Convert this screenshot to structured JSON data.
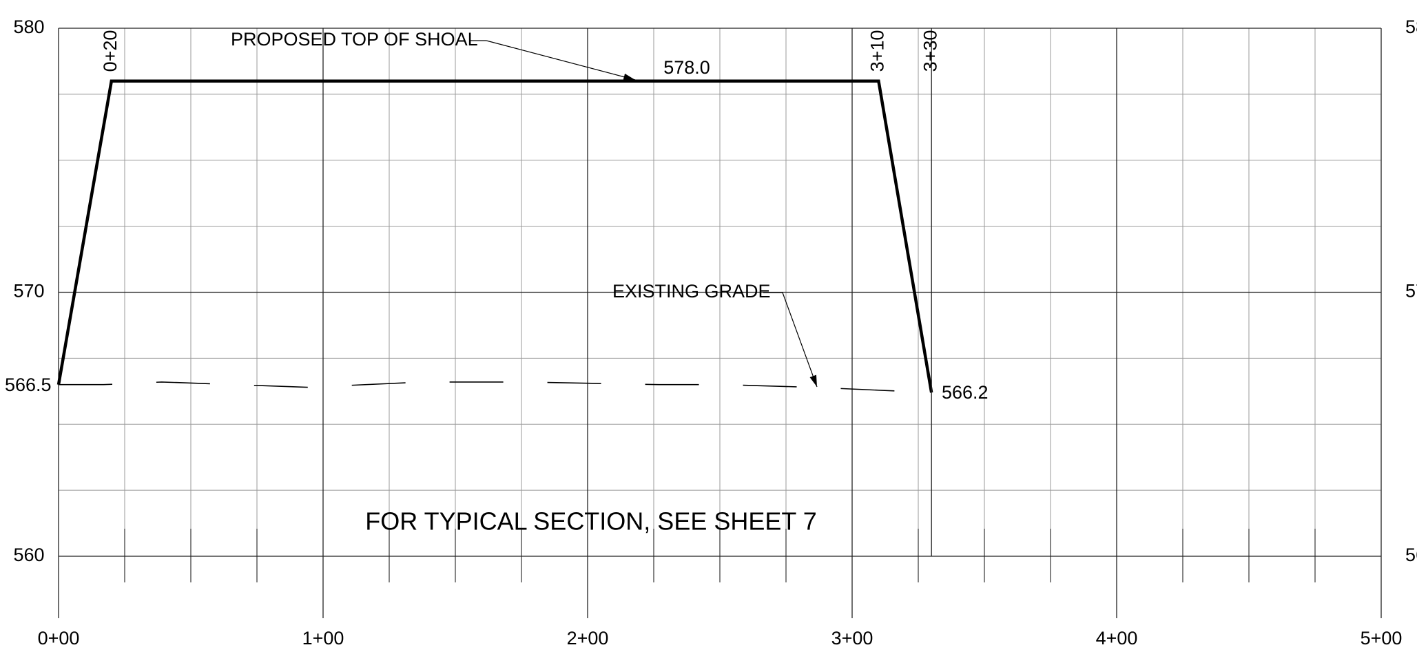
{
  "chart_data": {
    "type": "line",
    "x": [
      0,
      20,
      310,
      330
    ],
    "series": [
      {
        "name": "PROPOSED TOP OF SHOAL",
        "color": "#000000",
        "style": "solid",
        "x": [
          0,
          20,
          310,
          330
        ],
        "values": [
          566.5,
          578,
          578,
          566.2
        ]
      },
      {
        "name": "EXISTING GRADE",
        "color": "#000000",
        "style": "dashed",
        "x": [
          0,
          17,
          39,
          94,
          138,
          176,
          227,
          251,
          285,
          330
        ],
        "values": [
          566.5,
          566.5,
          566.6,
          566.4,
          566.6,
          566.6,
          566.5,
          566.5,
          566.4,
          566.2
        ]
      }
    ],
    "xlim": [
      0,
      500
    ],
    "ylim": [
      560,
      580
    ],
    "xticks": [
      {
        "value": 0,
        "label": "0+00"
      },
      {
        "value": 100,
        "label": "1+00"
      },
      {
        "value": 200,
        "label": "2+00"
      },
      {
        "value": 300,
        "label": "3+00"
      },
      {
        "value": 400,
        "label": "4+00"
      },
      {
        "value": 500,
        "label": "5+00"
      }
    ],
    "yticks": [
      560,
      570,
      580
    ],
    "minor_xticks": [
      25,
      50,
      75,
      125,
      150,
      175,
      225,
      250,
      275,
      325,
      350,
      375,
      425,
      450,
      475
    ],
    "minor_yticks": [
      562.5,
      565,
      567.5,
      572.5,
      575,
      577.5
    ],
    "grid": true,
    "annotations": [
      "PROPOSED TOP OF SHOAL",
      "578.0",
      "0+20",
      "3+10",
      "3+30",
      "EXISTING GRADE",
      "566.2",
      "566.5",
      "FOR TYPICAL SECTION, SEE SHEET 7"
    ]
  }
}
